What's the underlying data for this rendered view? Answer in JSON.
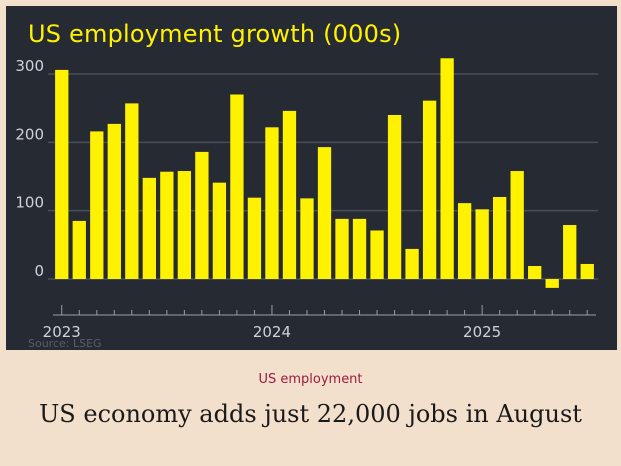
{
  "chart_data": {
    "type": "bar",
    "title": "US employment growth (000s)",
    "source": "Source: LSEG",
    "x_tick_labels": [
      "2023",
      "2024",
      "2025"
    ],
    "y_ticks": [
      0,
      100,
      200,
      300
    ],
    "ylim": [
      -15,
      330
    ],
    "grid": true,
    "series": [
      {
        "color": "#fff200",
        "values": [
          306,
          85,
          216,
          227,
          257,
          148,
          157,
          158,
          186,
          141,
          270,
          119,
          222,
          246,
          118,
          193,
          88,
          88,
          71,
          240,
          44,
          261,
          323,
          111,
          102,
          120,
          158,
          19,
          -13,
          79,
          22
        ]
      }
    ],
    "bar_color": "#fff200",
    "background": "#262a33"
  },
  "caption": {
    "kicker": "US employment",
    "headline": "US economy adds just 22,000 jobs in August"
  },
  "colors": {
    "kicker": "#9b1c3f",
    "page_background": "#f2dfcc"
  }
}
